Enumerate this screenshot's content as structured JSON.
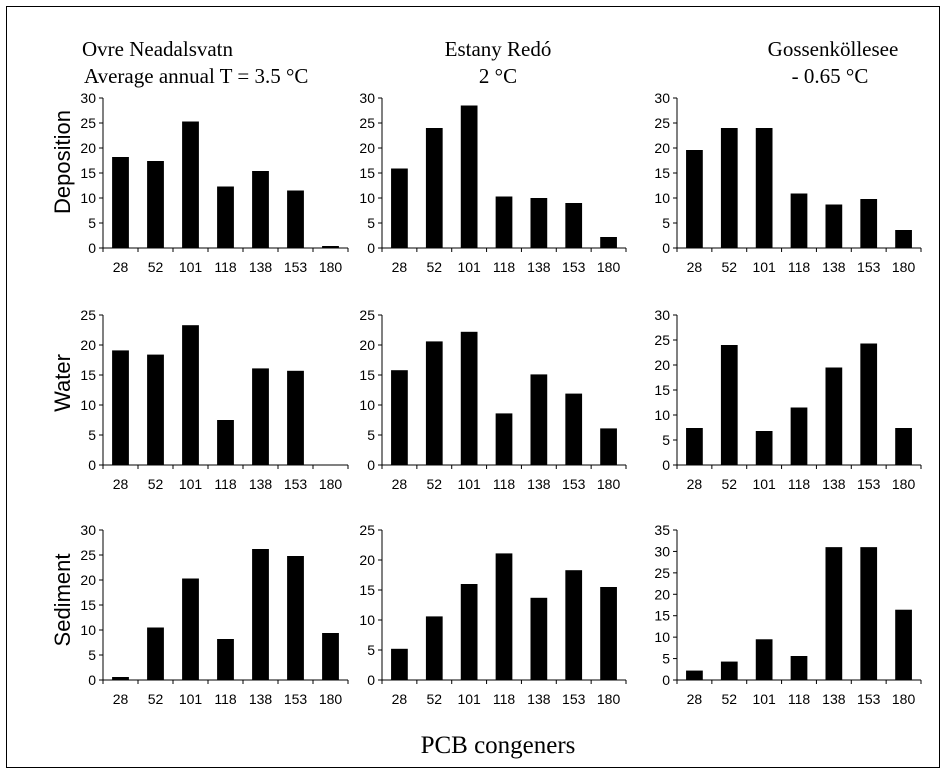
{
  "columns": [
    {
      "site": "Ovre Neadalsvatn",
      "temperature": "Average annual T = 3.5 °C"
    },
    {
      "site": "Estany Redó",
      "temperature": "2 °C"
    },
    {
      "site": "Gossenköllesee",
      "temperature": "- 0.65 °C"
    }
  ],
  "rows": [
    "Deposition",
    "Water",
    "Sediment"
  ],
  "xlabel": "PCB congeners",
  "colors": {
    "bar": "#000000",
    "axis": "#000000"
  },
  "chart_data": [
    {
      "type": "bar",
      "row": "Deposition",
      "column": "Ovre Neadalsvatn",
      "categories": [
        "28",
        "52",
        "101",
        "118",
        "138",
        "153",
        "180"
      ],
      "values": [
        18.2,
        17.4,
        25.3,
        12.3,
        15.4,
        11.5,
        0.4
      ],
      "ylim": [
        0,
        30
      ],
      "yticks": [
        0,
        5,
        10,
        15,
        20,
        25,
        30
      ]
    },
    {
      "type": "bar",
      "row": "Deposition",
      "column": "Estany Redó",
      "categories": [
        "28",
        "52",
        "101",
        "118",
        "138",
        "153",
        "180"
      ],
      "values": [
        15.9,
        24.0,
        28.5,
        10.3,
        10.0,
        9.0,
        2.2
      ],
      "ylim": [
        0,
        30
      ],
      "yticks": [
        0,
        5,
        10,
        15,
        20,
        25,
        30
      ]
    },
    {
      "type": "bar",
      "row": "Deposition",
      "column": "Gossenköllesee",
      "categories": [
        "28",
        "52",
        "101",
        "118",
        "138",
        "153",
        "180"
      ],
      "values": [
        19.6,
        24.0,
        24.0,
        10.9,
        8.7,
        9.8,
        3.6
      ],
      "ylim": [
        0,
        30
      ],
      "yticks": [
        0,
        5,
        10,
        15,
        20,
        25,
        30
      ]
    },
    {
      "type": "bar",
      "row": "Water",
      "column": "Ovre Neadalsvatn",
      "categories": [
        "28",
        "52",
        "101",
        "118",
        "138",
        "153",
        "180"
      ],
      "values": [
        19.1,
        18.4,
        23.3,
        7.5,
        16.1,
        15.7,
        0
      ],
      "ylim": [
        0,
        25
      ],
      "yticks": [
        0,
        5,
        10,
        15,
        20,
        25
      ]
    },
    {
      "type": "bar",
      "row": "Water",
      "column": "Estany Redó",
      "categories": [
        "28",
        "52",
        "101",
        "118",
        "138",
        "153",
        "180"
      ],
      "values": [
        15.8,
        20.6,
        22.2,
        8.6,
        15.1,
        11.9,
        6.1
      ],
      "ylim": [
        0,
        25
      ],
      "yticks": [
        0,
        5,
        10,
        15,
        20,
        25
      ]
    },
    {
      "type": "bar",
      "row": "Water",
      "column": "Gossenköllesee",
      "categories": [
        "28",
        "52",
        "101",
        "118",
        "138",
        "153",
        "180"
      ],
      "values": [
        7.4,
        24.0,
        6.8,
        11.5,
        19.5,
        24.3,
        7.4
      ],
      "ylim": [
        0,
        30
      ],
      "yticks": [
        0,
        5,
        10,
        15,
        20,
        25,
        30
      ]
    },
    {
      "type": "bar",
      "row": "Sediment",
      "column": "Ovre Neadalsvatn",
      "categories": [
        "28",
        "52",
        "101",
        "118",
        "138",
        "153",
        "180"
      ],
      "values": [
        0.6,
        10.5,
        20.3,
        8.2,
        26.2,
        24.8,
        9.4
      ],
      "ylim": [
        0,
        30
      ],
      "yticks": [
        0,
        5,
        10,
        15,
        20,
        25,
        30
      ]
    },
    {
      "type": "bar",
      "row": "Sediment",
      "column": "Estany Redó",
      "categories": [
        "28",
        "52",
        "101",
        "118",
        "138",
        "153",
        "180"
      ],
      "values": [
        5.2,
        10.6,
        16.0,
        21.1,
        13.7,
        18.3,
        15.5
      ],
      "ylim": [
        0,
        25
      ],
      "yticks": [
        0,
        5,
        10,
        15,
        20,
        25
      ]
    },
    {
      "type": "bar",
      "row": "Sediment",
      "column": "Gossenköllesee",
      "categories": [
        "28",
        "52",
        "101",
        "118",
        "138",
        "153",
        "180"
      ],
      "values": [
        2.2,
        4.3,
        9.5,
        5.6,
        31.0,
        31.0,
        16.4
      ],
      "ylim": [
        0,
        35
      ],
      "yticks": [
        0,
        5,
        10,
        15,
        20,
        25,
        30,
        35
      ]
    }
  ]
}
